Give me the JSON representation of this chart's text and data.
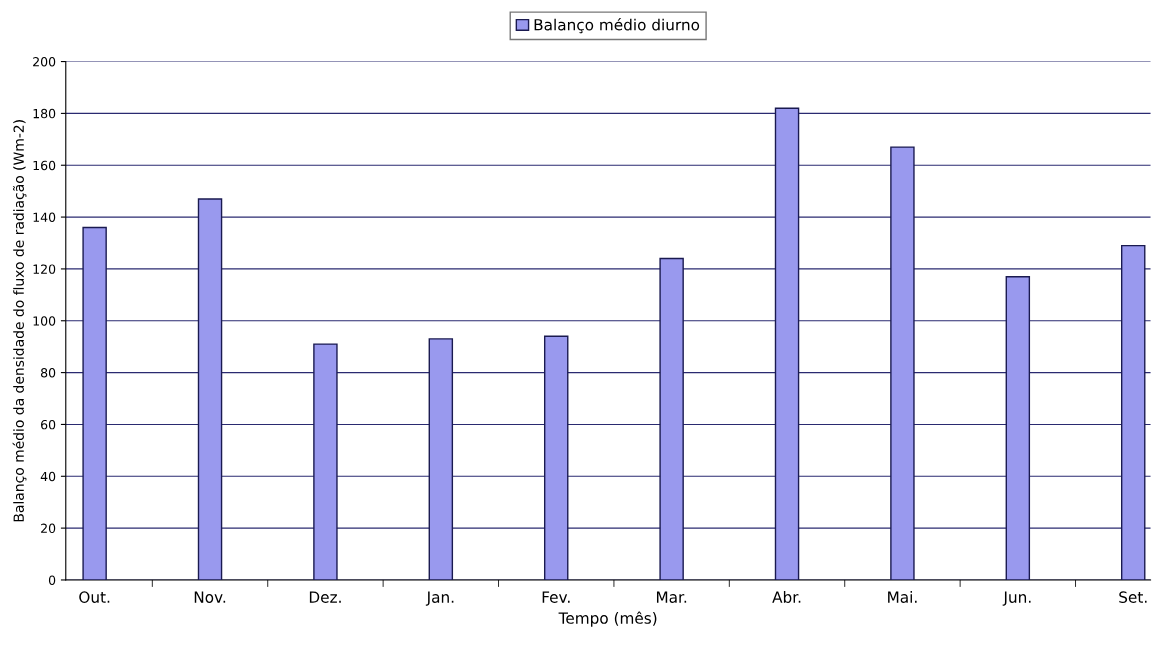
{
  "chart_data": {
    "type": "bar",
    "xlabel": "Tempo (mês)",
    "ylabel": "Balanço médio da densidade do fluxo de radiação (Wm-2)",
    "categories": [
      "Out.",
      "Nov.",
      "Dez.",
      "Jan.",
      "Fev.",
      "Mar.",
      "Abr.",
      "Mai.",
      "Jun.",
      "Set."
    ],
    "series": [
      {
        "name": "Balanço médio diurno",
        "color": "#9999ee",
        "values": [
          136,
          147,
          91,
          93,
          94,
          124,
          182,
          167,
          117,
          129
        ]
      }
    ],
    "ylim": [
      0,
      200
    ],
    "yticks": [
      0,
      20,
      40,
      60,
      80,
      100,
      120,
      140,
      160,
      180,
      200
    ],
    "grid": "y",
    "legend": "top"
  }
}
